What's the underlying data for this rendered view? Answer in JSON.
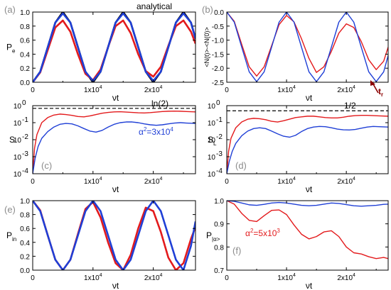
{
  "chart_data": [
    {
      "type": "line",
      "panel_label": "(a)",
      "ylabel": "P",
      "ylabel_sub": "e",
      "xlabel": "νt",
      "xlim": [
        0,
        27000
      ],
      "ylim": [
        0,
        1.0
      ],
      "yticks": [
        0.0,
        0.2,
        0.4,
        0.6,
        0.8,
        1.0
      ],
      "ytick_labels": [
        "0.0",
        "0.2",
        "0.4",
        "0.6",
        "0.8",
        "1.0"
      ],
      "xticks": [
        0,
        10000,
        20000
      ],
      "xtick_labels": [
        {
          "base": "0",
          "exp": ""
        },
        {
          "base": "1x10",
          "exp": "4"
        },
        {
          "base": "2x10",
          "exp": "4"
        }
      ],
      "series": [
        {
          "name": "analytical",
          "color": "#000000",
          "x": [
            0,
            1250,
            2500,
            3750,
            5000,
            6250,
            7500,
            8750,
            10000,
            11250,
            12500,
            13750,
            15000,
            16250,
            17500,
            18750,
            20000,
            21250,
            22500,
            23750,
            25000,
            26250,
            27000
          ],
          "y": [
            0.0,
            0.15,
            0.5,
            0.85,
            1.0,
            0.85,
            0.5,
            0.15,
            0.0,
            0.15,
            0.5,
            0.85,
            1.0,
            0.85,
            0.5,
            0.15,
            0.0,
            0.15,
            0.5,
            0.85,
            1.0,
            0.85,
            0.62
          ]
        },
        {
          "name": "",
          "color": "#e31a1c",
          "x": [
            0,
            1250,
            2500,
            3750,
            5000,
            6250,
            7500,
            8750,
            10000,
            11250,
            12500,
            13750,
            15000,
            16250,
            17500,
            18750,
            20000,
            21250,
            22500,
            23750,
            25000,
            26250,
            27000
          ],
          "y": [
            0.0,
            0.14,
            0.46,
            0.78,
            0.88,
            0.72,
            0.4,
            0.12,
            0.03,
            0.18,
            0.5,
            0.8,
            0.88,
            0.7,
            0.4,
            0.16,
            0.08,
            0.22,
            0.52,
            0.8,
            0.88,
            0.72,
            0.55
          ]
        },
        {
          "name": "",
          "color": "#1f3fd6",
          "x": [
            0,
            1250,
            2500,
            3750,
            5000,
            6250,
            7500,
            8750,
            10000,
            11250,
            12500,
            13750,
            15000,
            16250,
            17500,
            18750,
            20000,
            21250,
            22500,
            23750,
            25000,
            26250,
            27000
          ],
          "y": [
            0.0,
            0.15,
            0.5,
            0.85,
            0.98,
            0.85,
            0.5,
            0.15,
            0.02,
            0.15,
            0.5,
            0.85,
            0.98,
            0.85,
            0.5,
            0.15,
            0.02,
            0.15,
            0.5,
            0.85,
            0.98,
            0.85,
            0.62
          ]
        }
      ],
      "annotations": [
        {
          "text": "analytical",
          "color": "#000000"
        }
      ]
    },
    {
      "type": "line",
      "panel_label": "(b)",
      "ylabel": "<N(t)>-<N(0)>",
      "xlabel": "νt",
      "xlim": [
        0,
        27000
      ],
      "ylim": [
        -2.5,
        0.0
      ],
      "yticks": [
        0.0,
        -0.5,
        -1.0,
        -1.5,
        -2.0,
        -2.5
      ],
      "ytick_labels": [
        "0.0",
        "-0.5",
        "-1.0",
        "-1.5",
        "-2.0",
        "-2.5"
      ],
      "xticks": [
        0,
        10000,
        20000
      ],
      "xtick_labels": [
        {
          "base": "0",
          "exp": ""
        },
        {
          "base": "1x10",
          "exp": "4"
        },
        {
          "base": "2x10",
          "exp": "4"
        }
      ],
      "series": [
        {
          "name": "",
          "color": "#e31a1c",
          "x": [
            0,
            1250,
            2500,
            3750,
            5000,
            6250,
            7500,
            8750,
            10000,
            11250,
            12500,
            13750,
            15000,
            16250,
            17500,
            18750,
            20000,
            21250,
            22500,
            23750,
            25000,
            26250,
            27000
          ],
          "y": [
            0.0,
            -0.33,
            -1.15,
            -1.95,
            -2.28,
            -1.95,
            -1.2,
            -0.45,
            -0.12,
            -0.35,
            -0.95,
            -1.65,
            -2.15,
            -1.95,
            -1.4,
            -0.75,
            -0.42,
            -0.55,
            -1.05,
            -1.7,
            -2.05,
            -1.75,
            -1.25
          ]
        },
        {
          "name": "",
          "color": "#1f3fd6",
          "x": [
            0,
            1250,
            2500,
            3750,
            5000,
            6250,
            7500,
            8750,
            10000,
            11250,
            12500,
            13750,
            15000,
            16250,
            17500,
            18750,
            20000,
            21250,
            22500,
            23750,
            25000,
            26250,
            27000
          ],
          "y": [
            0.0,
            -0.36,
            -1.25,
            -2.13,
            -2.48,
            -2.13,
            -1.25,
            -0.36,
            0.0,
            -0.36,
            -1.25,
            -2.13,
            -2.48,
            -2.13,
            -1.25,
            -0.36,
            0.0,
            -0.36,
            -1.25,
            -2.13,
            -2.48,
            -2.13,
            -1.55
          ]
        }
      ],
      "annotations": [
        {
          "text": "t",
          "sub": "r",
          "color": "#8b0000"
        }
      ]
    },
    {
      "type": "line",
      "panel_label": "(c)",
      "ylabel": "S",
      "xlabel": "νt",
      "log_y": true,
      "xlim": [
        0,
        27000
      ],
      "ylim_exp": [
        -4,
        0
      ],
      "ytick_labels": [
        {
          "base": "10",
          "exp": "0"
        },
        {
          "base": "10",
          "exp": "-1"
        },
        {
          "base": "10",
          "exp": "-2"
        },
        {
          "base": "10",
          "exp": "-3"
        },
        {
          "base": "10",
          "exp": "-4"
        }
      ],
      "xticks": [
        0,
        10000,
        20000
      ],
      "xtick_labels": [
        {
          "base": "0",
          "exp": ""
        },
        {
          "base": "1x10",
          "exp": "4"
        },
        {
          "base": "2x10",
          "exp": "4"
        }
      ],
      "reference_line": {
        "y": 0.693,
        "label": "ln(2)",
        "style": "dashed"
      },
      "series": [
        {
          "name": "",
          "color": "#e31a1c",
          "x": [
            0,
            300,
            700,
            1500,
            2500,
            3500,
            4500,
            5500,
            6500,
            7500,
            8500,
            9500,
            10500,
            11500,
            12500,
            13500,
            14500,
            15500,
            16500,
            17500,
            18500,
            19500,
            20500,
            21500,
            22500,
            23500,
            24500,
            25500,
            27000
          ],
          "y": [
            0.0001,
            0.003,
            0.02,
            0.1,
            0.2,
            0.28,
            0.32,
            0.3,
            0.27,
            0.23,
            0.22,
            0.25,
            0.3,
            0.36,
            0.4,
            0.43,
            0.44,
            0.42,
            0.4,
            0.38,
            0.37,
            0.39,
            0.42,
            0.45,
            0.47,
            0.48,
            0.47,
            0.45,
            0.43
          ]
        },
        {
          "name": "",
          "color": "#1f3fd6",
          "x": [
            0,
            400,
            900,
            1500,
            2500,
            3500,
            4500,
            5500,
            6500,
            7500,
            8500,
            9500,
            10500,
            11500,
            12500,
            13500,
            14500,
            15500,
            16500,
            17500,
            18500,
            19500,
            20500,
            21500,
            22500,
            23500,
            24500,
            25500,
            27000
          ],
          "y": [
            0.0001,
            0.0008,
            0.004,
            0.012,
            0.03,
            0.055,
            0.08,
            0.09,
            0.085,
            0.065,
            0.045,
            0.032,
            0.028,
            0.035,
            0.055,
            0.08,
            0.1,
            0.11,
            0.11,
            0.1,
            0.085,
            0.075,
            0.07,
            0.075,
            0.085,
            0.095,
            0.1,
            0.095,
            0.09
          ]
        }
      ],
      "annotations": [
        {
          "text": "α",
          "sup": "2",
          "suffix": "=3x10",
          "suffix_sup": "4",
          "color": "#1f3fd6"
        }
      ]
    },
    {
      "type": "line",
      "panel_label": "(d)",
      "ylabel": "S",
      "ylabel_sub": "L",
      "xlabel": "νt",
      "log_y": true,
      "xlim": [
        0,
        27000
      ],
      "ylim_exp": [
        -4,
        0
      ],
      "ytick_labels": [
        {
          "base": "10",
          "exp": "0"
        },
        {
          "base": "10",
          "exp": "-1"
        },
        {
          "base": "10",
          "exp": "-2"
        },
        {
          "base": "10",
          "exp": "-3"
        },
        {
          "base": "10",
          "exp": "-4"
        }
      ],
      "xticks": [
        0,
        10000,
        20000
      ],
      "xtick_labels": [
        {
          "base": "0",
          "exp": ""
        },
        {
          "base": "1x10",
          "exp": "4"
        },
        {
          "base": "2x10",
          "exp": "4"
        }
      ],
      "reference_line": {
        "y": 0.5,
        "label": "1/2",
        "style": "dashed"
      },
      "series": [
        {
          "name": "",
          "color": "#e31a1c",
          "x": [
            0,
            300,
            700,
            1500,
            2500,
            3500,
            4500,
            5500,
            6500,
            7500,
            8500,
            9500,
            10500,
            11500,
            12500,
            13500,
            14500,
            15500,
            16500,
            17500,
            18500,
            19500,
            20500,
            21500,
            22500,
            23500,
            24500,
            25500,
            27000
          ],
          "y": [
            0.0001,
            0.002,
            0.012,
            0.05,
            0.11,
            0.16,
            0.18,
            0.17,
            0.15,
            0.12,
            0.11,
            0.13,
            0.16,
            0.2,
            0.22,
            0.24,
            0.24,
            0.22,
            0.2,
            0.19,
            0.19,
            0.21,
            0.24,
            0.26,
            0.27,
            0.27,
            0.26,
            0.25,
            0.24
          ]
        },
        {
          "name": "",
          "color": "#1f3fd6",
          "x": [
            0,
            400,
            900,
            1500,
            2500,
            3500,
            4500,
            5500,
            6500,
            7500,
            8500,
            9500,
            10500,
            11500,
            12500,
            13500,
            14500,
            15500,
            16500,
            17500,
            18500,
            19500,
            20500,
            21500,
            22500,
            23500,
            24500,
            25500,
            27000
          ],
          "y": [
            0.0001,
            0.0005,
            0.002,
            0.006,
            0.017,
            0.032,
            0.045,
            0.05,
            0.045,
            0.032,
            0.022,
            0.016,
            0.014,
            0.018,
            0.03,
            0.045,
            0.055,
            0.06,
            0.058,
            0.05,
            0.042,
            0.038,
            0.037,
            0.04,
            0.047,
            0.055,
            0.06,
            0.058,
            0.055
          ]
        }
      ]
    },
    {
      "type": "line",
      "panel_label": "(e)",
      "ylabel": "P",
      "ylabel_sub": "in",
      "xlabel": "νt",
      "xlim": [
        0,
        27000
      ],
      "ylim": [
        0,
        1.0
      ],
      "yticks": [
        0.0,
        0.2,
        0.4,
        0.6,
        0.8,
        1.0
      ],
      "ytick_labels": [
        "0.0",
        "0.2",
        "0.4",
        "0.6",
        "0.8",
        "1.0"
      ],
      "xticks": [
        0,
        10000,
        20000
      ],
      "xtick_labels": [
        {
          "base": "0",
          "exp": ""
        },
        {
          "base": "1x10",
          "exp": "4"
        },
        {
          "base": "2x10",
          "exp": "4"
        }
      ],
      "series": [
        {
          "name": "",
          "color": "#e31a1c",
          "x": [
            0,
            1250,
            2500,
            3750,
            5000,
            6250,
            7500,
            8750,
            10000,
            11250,
            12500,
            13750,
            15000,
            16250,
            17500,
            18750,
            20000,
            21250,
            22500,
            23750,
            25000,
            26250,
            27000
          ],
          "y": [
            1.0,
            0.86,
            0.5,
            0.15,
            0.0,
            0.15,
            0.52,
            0.88,
            0.98,
            0.76,
            0.4,
            0.1,
            0.0,
            0.22,
            0.6,
            0.9,
            0.85,
            0.55,
            0.18,
            0.0,
            0.1,
            0.45,
            0.62
          ]
        },
        {
          "name": "",
          "color": "#1f3fd6",
          "x": [
            0,
            1250,
            2500,
            3750,
            5000,
            6250,
            7500,
            8750,
            10000,
            11250,
            12500,
            13750,
            15000,
            16250,
            17500,
            18750,
            20000,
            21250,
            22500,
            23750,
            25000,
            26250,
            27000
          ],
          "y": [
            1.0,
            0.85,
            0.5,
            0.15,
            0.0,
            0.15,
            0.5,
            0.85,
            1.0,
            0.85,
            0.5,
            0.15,
            0.0,
            0.15,
            0.5,
            0.85,
            1.0,
            0.85,
            0.5,
            0.15,
            0.0,
            0.35,
            0.7
          ]
        }
      ]
    },
    {
      "type": "line",
      "panel_label": "(f)",
      "ylabel": "P",
      "ylabel_sub": "|α>",
      "xlabel": "νt",
      "xlim": [
        0,
        27000
      ],
      "ylim": [
        0.7,
        1.0
      ],
      "yticks": [
        0.7,
        0.8,
        0.9,
        1.0
      ],
      "ytick_labels": [
        "0.7",
        "0.8",
        "0.9",
        "1.0"
      ],
      "xticks": [
        0,
        10000,
        20000
      ],
      "xtick_labels": [
        {
          "base": "0",
          "exp": ""
        },
        {
          "base": "1x10",
          "exp": "4"
        },
        {
          "base": "2x10",
          "exp": "4"
        }
      ],
      "series": [
        {
          "name": "",
          "color": "#e31a1c",
          "x": [
            0,
            1250,
            2500,
            3750,
            5000,
            6250,
            7500,
            8750,
            10000,
            11250,
            12500,
            13750,
            15000,
            16250,
            17500,
            18750,
            20000,
            21250,
            22500,
            23750,
            25000,
            26250,
            27000
          ],
          "y": [
            1.0,
            0.985,
            0.945,
            0.915,
            0.91,
            0.935,
            0.958,
            0.96,
            0.94,
            0.895,
            0.855,
            0.835,
            0.845,
            0.865,
            0.87,
            0.845,
            0.8,
            0.775,
            0.77,
            0.758,
            0.75,
            0.755,
            0.75
          ]
        },
        {
          "name": "",
          "color": "#1f3fd6",
          "x": [
            0,
            1250,
            2500,
            3750,
            5000,
            6250,
            7500,
            8750,
            10000,
            11250,
            12500,
            13750,
            15000,
            16250,
            17500,
            18750,
            20000,
            21250,
            22500,
            23750,
            25000,
            26250,
            27000
          ],
          "y": [
            1.0,
            0.997,
            0.99,
            0.982,
            0.98,
            0.984,
            0.99,
            0.992,
            0.99,
            0.985,
            0.98,
            0.978,
            0.98,
            0.985,
            0.99,
            0.988,
            0.983,
            0.978,
            0.976,
            0.978,
            0.98,
            0.984,
            0.985
          ]
        }
      ],
      "annotations": [
        {
          "text": "α",
          "sup": "2",
          "suffix": "=5x10",
          "suffix_sup": "3",
          "color": "#e31a1c"
        }
      ]
    }
  ]
}
